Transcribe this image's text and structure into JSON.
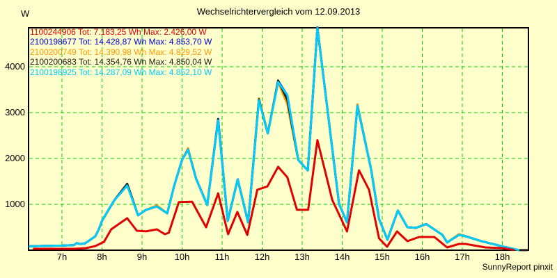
{
  "title": "Wechselrichtervergleich vom 12.09.2013",
  "footer": "SunnyReport pinxit",
  "colors": {
    "background": "#FFFFCC",
    "frame": "#000000",
    "grid": "#00D000",
    "text": "#000000"
  },
  "chart_data": {
    "type": "line",
    "title": "Wechselrichtervergleich vom 12.09.2013",
    "legend_position": "top-left-inside",
    "grid": "dashed-green",
    "y_axis": {
      "unit": "W",
      "ticks": [
        1000,
        2000,
        3000,
        4000
      ],
      "range": [
        0,
        4864
      ]
    },
    "x_axis": {
      "unit": "h",
      "tick_hours": [
        7,
        8,
        9,
        10,
        11,
        12,
        13,
        14,
        15,
        16,
        17,
        18
      ],
      "tick_labels": [
        "7h",
        "8h",
        "9h",
        "10h",
        "11h",
        "12h",
        "13h",
        "14h",
        "15h",
        "16h",
        "17h",
        "18h"
      ],
      "range_hours": [
        6.13,
        18.67
      ]
    },
    "series": [
      {
        "id": "1100244906",
        "legend": "1100244906 Tot: 7.183,25 Wh Max: 2.426,00 W",
        "total_wh": "7.183,25",
        "max_w": "2.426,00",
        "color": "#E00000",
        "points": [
          [
            6.3,
            30
          ],
          [
            7.0,
            30
          ],
          [
            7.32,
            30
          ],
          [
            7.6,
            45
          ],
          [
            7.83,
            90
          ],
          [
            8.05,
            182
          ],
          [
            8.23,
            455
          ],
          [
            8.63,
            697
          ],
          [
            8.87,
            424
          ],
          [
            9.1,
            410
          ],
          [
            9.37,
            455
          ],
          [
            9.57,
            348
          ],
          [
            9.67,
            380
          ],
          [
            9.92,
            1050
          ],
          [
            10.25,
            1058
          ],
          [
            10.6,
            500
          ],
          [
            10.9,
            1240
          ],
          [
            11.15,
            348
          ],
          [
            11.38,
            833
          ],
          [
            11.63,
            333
          ],
          [
            11.88,
            1318
          ],
          [
            12.13,
            1390
          ],
          [
            12.4,
            1818
          ],
          [
            12.63,
            1590
          ],
          [
            12.87,
            880
          ],
          [
            13.15,
            880
          ],
          [
            13.38,
            2400
          ],
          [
            13.75,
            1100
          ],
          [
            14.12,
            409
          ],
          [
            14.42,
            1742
          ],
          [
            14.67,
            1318
          ],
          [
            14.92,
            258
          ],
          [
            15.12,
            76
          ],
          [
            15.37,
            409
          ],
          [
            15.63,
            197
          ],
          [
            15.92,
            288
          ],
          [
            16.3,
            288
          ],
          [
            16.62,
            61
          ],
          [
            16.92,
            136
          ],
          [
            17.08,
            136
          ],
          [
            17.58,
            61
          ],
          [
            18.0,
            45
          ],
          [
            18.28,
            5
          ]
        ]
      },
      {
        "id": "2100198677",
        "legend": "2100198677 Tot: 14.428,87 Wh Max: 4.853,70 W",
        "total_wh": "14.428,87",
        "max_w": "4.853,70",
        "color": "#0000CC",
        "points": [
          [
            6.2,
            85
          ],
          [
            6.5,
            92
          ],
          [
            7.0,
            100
          ],
          [
            7.3,
            112
          ],
          [
            7.37,
            155
          ],
          [
            7.45,
            135
          ],
          [
            7.58,
            150
          ],
          [
            7.83,
            300
          ],
          [
            7.92,
            455
          ],
          [
            8.0,
            640
          ],
          [
            8.3,
            1080
          ],
          [
            8.63,
            1440
          ],
          [
            8.9,
            760
          ],
          [
            9.1,
            880
          ],
          [
            9.37,
            955
          ],
          [
            9.63,
            805
          ],
          [
            9.8,
            1395
          ],
          [
            10.0,
            1970
          ],
          [
            10.15,
            2195
          ],
          [
            10.35,
            1560
          ],
          [
            10.63,
            985
          ],
          [
            10.9,
            2862
          ],
          [
            11.14,
            640
          ],
          [
            11.39,
            1545
          ],
          [
            11.65,
            605
          ],
          [
            11.92,
            3285
          ],
          [
            12.14,
            2545
          ],
          [
            12.4,
            3688
          ],
          [
            12.63,
            3380
          ],
          [
            12.9,
            1970
          ],
          [
            13.14,
            1740
          ],
          [
            13.38,
            4856
          ],
          [
            13.92,
            1015
          ],
          [
            14.12,
            605
          ],
          [
            14.38,
            3150
          ],
          [
            14.72,
            1770
          ],
          [
            14.92,
            680
          ],
          [
            15.13,
            230
          ],
          [
            15.39,
            865
          ],
          [
            15.63,
            500
          ],
          [
            15.85,
            490
          ],
          [
            16.1,
            570
          ],
          [
            16.5,
            335
          ],
          [
            16.62,
            170
          ],
          [
            16.92,
            335
          ],
          [
            17.08,
            305
          ],
          [
            17.48,
            195
          ],
          [
            17.83,
            120
          ],
          [
            18.18,
            45
          ],
          [
            18.4,
            5
          ]
        ]
      },
      {
        "id": "2100200749",
        "legend": "2100200749 Tot: 14.390,98 Wh Max: 4.829,52 W",
        "total_wh": "14.390,98",
        "max_w": "4.829,52",
        "color": "#FF9900",
        "points": [
          [
            6.2,
            85
          ],
          [
            6.5,
            92
          ],
          [
            7.0,
            100
          ],
          [
            7.3,
            112
          ],
          [
            7.37,
            155
          ],
          [
            7.45,
            135
          ],
          [
            7.58,
            150
          ],
          [
            7.83,
            300
          ],
          [
            7.92,
            455
          ],
          [
            8.0,
            640
          ],
          [
            8.3,
            1080
          ],
          [
            8.63,
            1409
          ],
          [
            8.9,
            760
          ],
          [
            9.1,
            880
          ],
          [
            9.37,
            975
          ],
          [
            9.63,
            805
          ],
          [
            9.8,
            1395
          ],
          [
            10.0,
            1970
          ],
          [
            10.15,
            2225
          ],
          [
            10.35,
            1560
          ],
          [
            10.63,
            985
          ],
          [
            10.9,
            2830
          ],
          [
            11.14,
            640
          ],
          [
            11.39,
            1545
          ],
          [
            11.65,
            605
          ],
          [
            11.92,
            3310
          ],
          [
            12.14,
            2545
          ],
          [
            12.4,
            3665
          ],
          [
            12.63,
            3180
          ],
          [
            12.9,
            1970
          ],
          [
            13.14,
            1740
          ],
          [
            13.38,
            4845
          ],
          [
            13.92,
            1015
          ],
          [
            14.12,
            605
          ],
          [
            14.38,
            3180
          ],
          [
            14.72,
            1770
          ],
          [
            14.92,
            680
          ],
          [
            15.13,
            230
          ],
          [
            15.39,
            865
          ],
          [
            15.63,
            500
          ],
          [
            15.85,
            490
          ],
          [
            16.1,
            570
          ],
          [
            16.5,
            335
          ],
          [
            16.62,
            170
          ],
          [
            16.92,
            350
          ],
          [
            17.08,
            305
          ],
          [
            17.48,
            195
          ],
          [
            17.83,
            120
          ],
          [
            18.18,
            45
          ],
          [
            18.4,
            5
          ]
        ]
      },
      {
        "id": "2100200683",
        "legend": "2100200683 Tot: 14.354,76 Wh Max: 4.850,04 W",
        "total_wh": "14.354,76",
        "max_w": "4.850,04",
        "color": "#1A1A1A",
        "points": [
          [
            6.2,
            85
          ],
          [
            6.5,
            92
          ],
          [
            7.0,
            100
          ],
          [
            7.3,
            112
          ],
          [
            7.37,
            155
          ],
          [
            7.45,
            135
          ],
          [
            7.58,
            150
          ],
          [
            7.83,
            300
          ],
          [
            7.92,
            455
          ],
          [
            8.0,
            640
          ],
          [
            8.3,
            1080
          ],
          [
            8.63,
            1448
          ],
          [
            8.9,
            760
          ],
          [
            9.1,
            880
          ],
          [
            9.37,
            955
          ],
          [
            9.63,
            805
          ],
          [
            9.8,
            1395
          ],
          [
            10.0,
            1970
          ],
          [
            10.15,
            2195
          ],
          [
            10.35,
            1560
          ],
          [
            10.63,
            985
          ],
          [
            10.9,
            2848
          ],
          [
            11.14,
            640
          ],
          [
            11.39,
            1545
          ],
          [
            11.65,
            605
          ],
          [
            11.92,
            3290
          ],
          [
            12.14,
            2545
          ],
          [
            12.4,
            3700
          ],
          [
            12.63,
            3280
          ],
          [
            12.9,
            1970
          ],
          [
            13.14,
            1740
          ],
          [
            13.38,
            4850
          ],
          [
            13.92,
            1015
          ],
          [
            14.12,
            605
          ],
          [
            14.38,
            3150
          ],
          [
            14.72,
            1770
          ],
          [
            14.92,
            680
          ],
          [
            15.13,
            230
          ],
          [
            15.39,
            865
          ],
          [
            15.63,
            500
          ],
          [
            15.85,
            490
          ],
          [
            16.1,
            570
          ],
          [
            16.5,
            335
          ],
          [
            16.62,
            170
          ],
          [
            16.92,
            335
          ],
          [
            17.08,
            305
          ],
          [
            17.48,
            195
          ],
          [
            17.83,
            120
          ],
          [
            18.18,
            45
          ],
          [
            18.4,
            5
          ],
          [
            18.5,
            2
          ],
          [
            18.62,
            2
          ]
        ]
      },
      {
        "id": "2100198925",
        "legend": "2100198925 Tot: 14.287,09 Wh Max: 4.852,10 W",
        "total_wh": "14.287,09",
        "max_w": "4.852,10",
        "color": "#00CCFF",
        "points": [
          [
            6.2,
            85
          ],
          [
            6.5,
            92
          ],
          [
            7.0,
            100
          ],
          [
            7.3,
            112
          ],
          [
            7.37,
            155
          ],
          [
            7.45,
            135
          ],
          [
            7.58,
            150
          ],
          [
            7.83,
            300
          ],
          [
            7.92,
            455
          ],
          [
            8.0,
            640
          ],
          [
            8.3,
            1080
          ],
          [
            8.63,
            1409
          ],
          [
            8.9,
            760
          ],
          [
            9.1,
            880
          ],
          [
            9.37,
            955
          ],
          [
            9.63,
            805
          ],
          [
            9.8,
            1395
          ],
          [
            10.0,
            1970
          ],
          [
            10.15,
            2195
          ],
          [
            10.35,
            1560
          ],
          [
            10.63,
            985
          ],
          [
            10.9,
            2830
          ],
          [
            11.14,
            640
          ],
          [
            11.39,
            1545
          ],
          [
            11.65,
            605
          ],
          [
            11.92,
            3270
          ],
          [
            12.14,
            2545
          ],
          [
            12.4,
            3665
          ],
          [
            12.63,
            3380
          ],
          [
            12.9,
            1970
          ],
          [
            13.14,
            1740
          ],
          [
            13.38,
            4845
          ],
          [
            13.92,
            1015
          ],
          [
            14.12,
            605
          ],
          [
            14.38,
            3150
          ],
          [
            14.72,
            1770
          ],
          [
            14.92,
            680
          ],
          [
            15.13,
            230
          ],
          [
            15.39,
            865
          ],
          [
            15.63,
            500
          ],
          [
            15.85,
            490
          ],
          [
            16.1,
            570
          ],
          [
            16.5,
            335
          ],
          [
            16.62,
            170
          ],
          [
            16.92,
            335
          ],
          [
            17.08,
            305
          ],
          [
            17.48,
            195
          ],
          [
            17.83,
            120
          ],
          [
            18.18,
            45
          ],
          [
            18.4,
            5
          ]
        ]
      }
    ]
  }
}
